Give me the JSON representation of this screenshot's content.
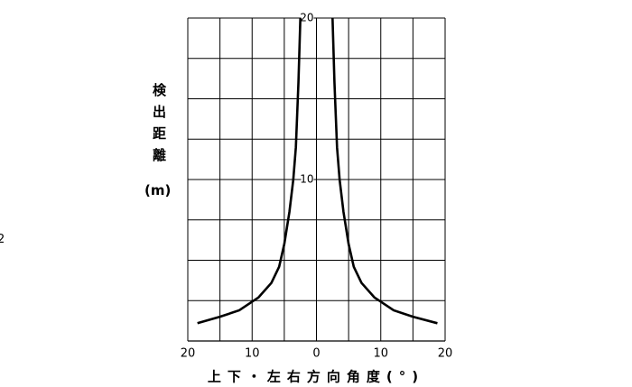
{
  "chart_data": {
    "type": "line",
    "y_label": "検出距離",
    "y_unit": "(m)",
    "x_label": "上下・左右方向角度(°)",
    "side_text": "2",
    "xlim": [
      -20,
      20
    ],
    "ylim": [
      0,
      20
    ],
    "xticks": [
      {
        "value": -20,
        "label": "20"
      },
      {
        "value": -10,
        "label": "10"
      },
      0,
      10,
      20
    ],
    "yticks": [
      10,
      20
    ],
    "xgrid": [
      -20,
      -15,
      -10,
      -5,
      0,
      5,
      10,
      15,
      20
    ],
    "ygrid": [
      2.5,
      5,
      7.5,
      10,
      12.5,
      15,
      17.5,
      20
    ],
    "grid": true,
    "series": [
      {
        "color": "#000000",
        "x": [
          -2.5,
          -2.8,
          -3.2,
          -3.6,
          -4.2,
          -5.0,
          -5.8,
          -7,
          -9,
          -12,
          -15,
          -18.5
        ],
        "values": [
          20,
          16,
          12,
          10,
          8,
          6,
          4.6,
          3.6,
          2.7,
          1.9,
          1.5,
          1.1
        ]
      },
      {
        "color": "#000000",
        "x": [
          2.5,
          2.8,
          3.2,
          3.6,
          4.2,
          5.0,
          5.8,
          7,
          9,
          12,
          15,
          18.8
        ],
        "values": [
          20,
          16,
          12,
          10,
          8,
          6,
          4.6,
          3.6,
          2.7,
          1.9,
          1.5,
          1.1
        ]
      }
    ]
  }
}
